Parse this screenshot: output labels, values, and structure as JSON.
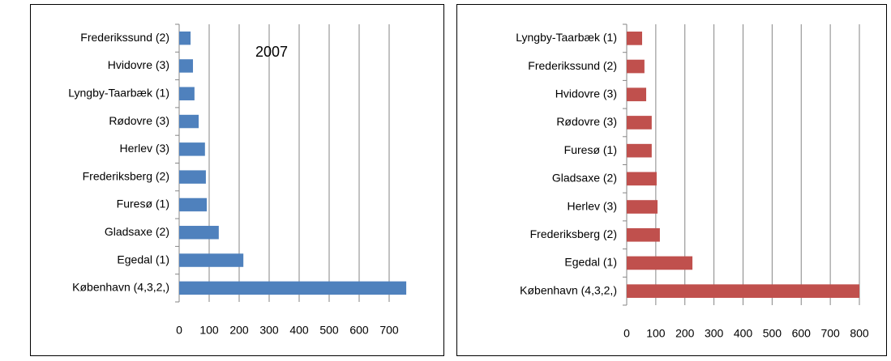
{
  "chart_data": [
    {
      "type": "bar",
      "orientation": "horizontal",
      "title": "2007",
      "color": "#4f81bd",
      "categories": [
        "Frederikssund (2)",
        "Hvidovre (3)",
        "Lyngby-Taarbæk (1)",
        "Rødovre (3)",
        "Herlev (3)",
        "Frederiksberg (2)",
        "Furesø (1)",
        "Gladsaxe (2)",
        "Egedal (1)",
        "København (4,3,2,)"
      ],
      "values": [
        38,
        46,
        51,
        65,
        86,
        89,
        92,
        132,
        214,
        757
      ],
      "xlim": [
        0,
        800
      ],
      "xticks": [
        0,
        100,
        200,
        300,
        400,
        500,
        600,
        700
      ],
      "grid": true
    },
    {
      "type": "bar",
      "orientation": "horizontal",
      "color": "#c0504d",
      "categories": [
        "Lyngby-Taarbæk (1)",
        "Frederikssund (2)",
        "Hvidovre (3)",
        "Rødovre (3)",
        "Furesø (1)",
        "Gladsaxe (2)",
        "Herlev (3)",
        "Frederiksberg (2)",
        "Egedal (1)",
        "København (4,3,2,)"
      ],
      "values": [
        53,
        61,
        67,
        86,
        86,
        103,
        106,
        114,
        226,
        800
      ],
      "xlim": [
        0,
        800
      ],
      "xticks": [
        0,
        100,
        200,
        300,
        400,
        500,
        600,
        700,
        800
      ],
      "grid": true
    }
  ]
}
